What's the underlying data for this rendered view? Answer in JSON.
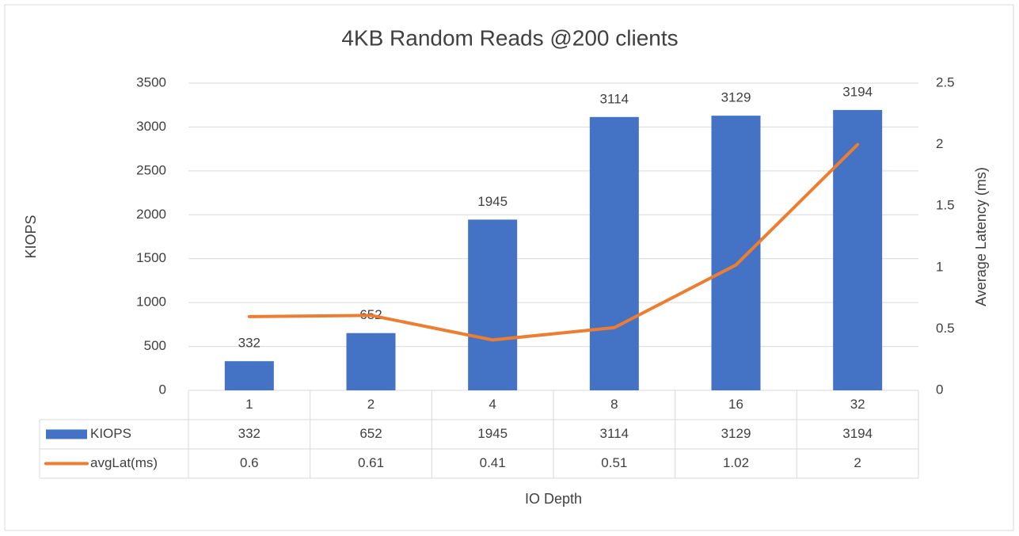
{
  "chart_data": {
    "type": "bar",
    "title": "4KB Random Reads @200 clients",
    "x_label": "IO Depth",
    "y_label": "KIOPS",
    "y2_label": "Average Latency (ms)",
    "categories": [
      "1",
      "2",
      "4",
      "8",
      "16",
      "32"
    ],
    "series": [
      {
        "name": "KIOPS",
        "type": "bar",
        "color": "#4472c4",
        "values": [
          332,
          652,
          1945,
          3114,
          3129,
          3194
        ]
      },
      {
        "name": "avgLat(ms)",
        "type": "line",
        "axis": "y2",
        "color": "#ed7d31",
        "values": [
          0.6,
          0.61,
          0.41,
          0.51,
          1.02,
          2
        ]
      }
    ],
    "ylim": [
      0,
      3500
    ],
    "yticks": [
      0,
      500,
      1000,
      1500,
      2000,
      2500,
      3000,
      3500
    ],
    "y2lim": [
      0,
      2.5
    ],
    "y2ticks": [
      0,
      0.5,
      1,
      1.5,
      2,
      2.5
    ],
    "grid": true,
    "data_table": true
  }
}
